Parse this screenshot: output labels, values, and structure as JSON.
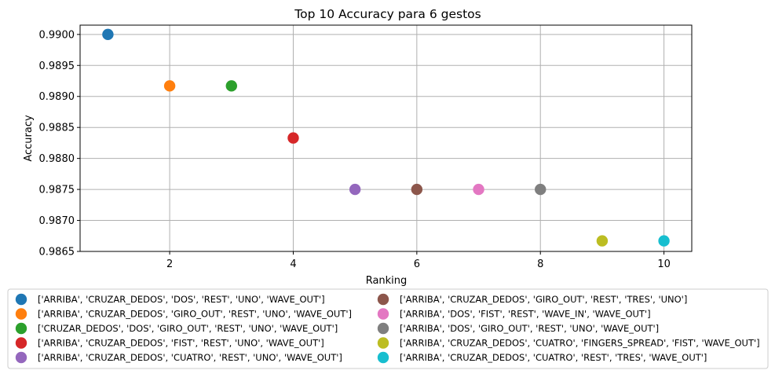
{
  "chart_data": {
    "type": "scatter",
    "title": "Top 10 Accuracy para 6 gestos",
    "xlabel": "Ranking",
    "ylabel": "Accuracy",
    "xlim": [
      0.55,
      10.45
    ],
    "ylim": [
      0.9865,
      0.99015
    ],
    "xticks": [
      2,
      4,
      6,
      8,
      10
    ],
    "yticks": [
      0.9865,
      0.987,
      0.9875,
      0.988,
      0.9885,
      0.989,
      0.9895,
      0.99
    ],
    "ytick_labels": [
      "0.9865",
      "0.9870",
      "0.9875",
      "0.9880",
      "0.9885",
      "0.9890",
      "0.9895",
      "0.9900"
    ],
    "grid": true,
    "legend_position": "bottom",
    "series": [
      {
        "name": "['ARRIBA', 'CRUZAR_DEDOS', 'DOS', 'REST', 'UNO', 'WAVE_OUT']",
        "color": "#1f77b4",
        "x": 1,
        "y": 0.99
      },
      {
        "name": "['ARRIBA', 'CRUZAR_DEDOS', 'GIRO_OUT', 'REST', 'UNO', 'WAVE_OUT']",
        "color": "#ff7f0e",
        "x": 2,
        "y": 0.98917
      },
      {
        "name": "['CRUZAR_DEDOS', 'DOS', 'GIRO_OUT', 'REST', 'UNO', 'WAVE_OUT']",
        "color": "#2ca02c",
        "x": 3,
        "y": 0.98917
      },
      {
        "name": "['ARRIBA', 'CRUZAR_DEDOS', 'FIST', 'REST', 'UNO', 'WAVE_OUT']",
        "color": "#d62728",
        "x": 4,
        "y": 0.98833
      },
      {
        "name": "['ARRIBA', 'CRUZAR_DEDOS', 'CUATRO', 'REST', 'UNO', 'WAVE_OUT']",
        "color": "#9467bd",
        "x": 5,
        "y": 0.9875
      },
      {
        "name": "['ARRIBA', 'CRUZAR_DEDOS', 'GIRO_OUT', 'REST', 'TRES', 'UNO']",
        "color": "#8c564b",
        "x": 6,
        "y": 0.9875
      },
      {
        "name": "['ARRIBA', 'DOS', 'FIST', 'REST', 'WAVE_IN', 'WAVE_OUT']",
        "color": "#e377c2",
        "x": 7,
        "y": 0.9875
      },
      {
        "name": "['ARRIBA', 'DOS', 'GIRO_OUT', 'REST', 'UNO', 'WAVE_OUT']",
        "color": "#7f7f7f",
        "x": 8,
        "y": 0.9875
      },
      {
        "name": "['ARRIBA', 'CRUZAR_DEDOS', 'CUATRO', 'FINGERS_SPREAD', 'FIST', 'WAVE_OUT']",
        "color": "#bcbd22",
        "x": 9,
        "y": 0.98667
      },
      {
        "name": "['ARRIBA', 'CRUZAR_DEDOS', 'CUATRO', 'REST', 'TRES', 'WAVE_OUT']",
        "color": "#17becf",
        "x": 10,
        "y": 0.98667
      }
    ]
  }
}
